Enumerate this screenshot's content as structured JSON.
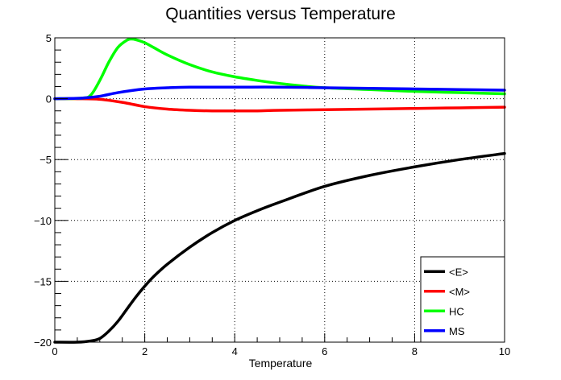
{
  "chart_data": {
    "type": "line",
    "title": "Quantities versus Temperature",
    "xlabel": "Temperature",
    "ylabel": "",
    "xlim": [
      0,
      10
    ],
    "ylim": [
      -20,
      5
    ],
    "xticks": [
      0,
      2,
      4,
      6,
      8,
      10
    ],
    "yticks": [
      -20,
      -15,
      -10,
      -5,
      0,
      5
    ],
    "grid": true,
    "legend_position": "bottom-right",
    "series": [
      {
        "name": "<E>",
        "color": "#000000",
        "x": [
          0,
          0.5,
          0.8,
          1.0,
          1.2,
          1.4,
          1.6,
          1.8,
          2.0,
          2.2,
          2.5,
          3.0,
          3.5,
          4.0,
          4.5,
          5.0,
          6.0,
          7.0,
          8.0,
          9.0,
          10.0
        ],
        "y": [
          -20,
          -20,
          -19.9,
          -19.7,
          -19.1,
          -18.3,
          -17.3,
          -16.3,
          -15.4,
          -14.6,
          -13.6,
          -12.2,
          -11.0,
          -10.0,
          -9.2,
          -8.5,
          -7.2,
          -6.3,
          -5.6,
          -5.0,
          -4.5
        ]
      },
      {
        "name": "<M>",
        "color": "#ff0000",
        "x": [
          0,
          0.5,
          1.0,
          1.5,
          2.0,
          2.5,
          3.0,
          3.5,
          4.0,
          4.5,
          5.0,
          6.0,
          7.0,
          8.0,
          9.0,
          10.0
        ],
        "y": [
          0,
          0,
          -0.05,
          -0.3,
          -0.65,
          -0.85,
          -0.95,
          -1.0,
          -1.0,
          -1.0,
          -0.95,
          -0.9,
          -0.85,
          -0.8,
          -0.75,
          -0.7
        ]
      },
      {
        "name": "HC",
        "color": "#00ff00",
        "x": [
          0,
          0.6,
          0.8,
          1.0,
          1.2,
          1.4,
          1.6,
          1.7,
          1.8,
          2.0,
          2.2,
          2.5,
          3.0,
          3.5,
          4.0,
          4.5,
          5.0,
          5.5,
          6.0,
          7.0,
          8.0,
          9.0,
          10.0
        ],
        "y": [
          0,
          0.05,
          0.3,
          1.5,
          3.0,
          4.2,
          4.8,
          4.9,
          4.85,
          4.6,
          4.2,
          3.6,
          2.8,
          2.2,
          1.8,
          1.5,
          1.25,
          1.05,
          0.9,
          0.75,
          0.6,
          0.5,
          0.4
        ]
      },
      {
        "name": "MS",
        "color": "#0000ff",
        "x": [
          0,
          0.6,
          1.0,
          1.4,
          2.0,
          2.5,
          3.0,
          4.0,
          5.0,
          6.0,
          7.0,
          8.0,
          9.0,
          10.0
        ],
        "y": [
          0,
          0.05,
          0.2,
          0.5,
          0.8,
          0.9,
          0.95,
          0.95,
          0.95,
          0.9,
          0.85,
          0.8,
          0.75,
          0.7
        ]
      }
    ]
  }
}
